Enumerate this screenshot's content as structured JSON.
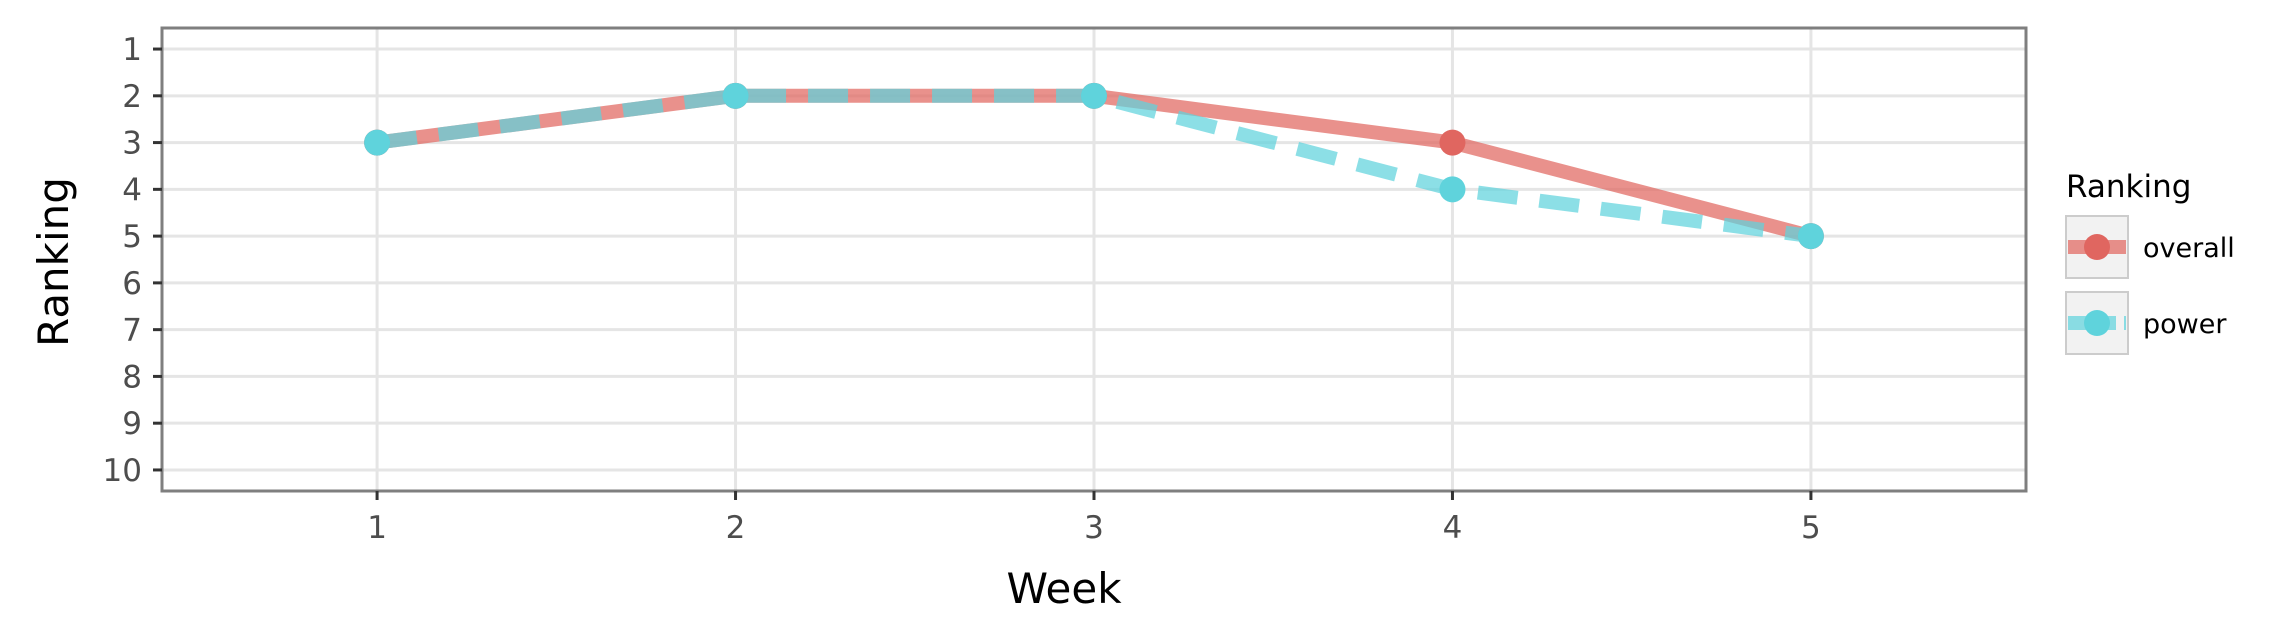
{
  "chart_data": {
    "type": "line",
    "title": "",
    "xlabel": "Week",
    "ylabel": "Ranking",
    "x": [
      1,
      2,
      3,
      4,
      5
    ],
    "xlim": [
      0.4,
      5.6
    ],
    "ylim": [
      10.45,
      0.55
    ],
    "y_reversed": true,
    "xticks": [
      "1",
      "2",
      "3",
      "4",
      "5"
    ],
    "yticks": [
      "1",
      "2",
      "3",
      "4",
      "5",
      "6",
      "7",
      "8",
      "9",
      "10"
    ],
    "grid": true,
    "legend": {
      "title": "Ranking",
      "position": "right"
    },
    "series": [
      {
        "name": "overall",
        "values": [
          3,
          2,
          2,
          3,
          5
        ],
        "color": "#e06660",
        "line_style": "solid"
      },
      {
        "name": "power",
        "values": [
          3,
          2,
          2,
          4,
          5
        ],
        "color": "#5fd3dc",
        "line_style": "dashed"
      }
    ]
  }
}
